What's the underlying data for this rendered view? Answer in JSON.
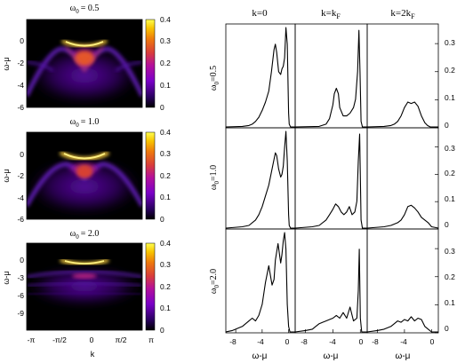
{
  "chart_data": [
    {
      "type": "heatmap",
      "title_prefix": "ω",
      "title_sub": "0",
      "title_value": "= 0.5",
      "ylabel": "ω-μ",
      "yticks": [
        0,
        -2,
        -4,
        -6
      ],
      "ylim": [
        -6,
        2
      ],
      "xlim": [
        -3.1416,
        3.1416
      ],
      "colorbar_ticks": [
        "0.4",
        "0.3",
        "0.2",
        "0.1",
        "0"
      ],
      "colorbar_range": [
        0,
        0.4
      ]
    },
    {
      "type": "heatmap",
      "title_prefix": "ω",
      "title_sub": "0",
      "title_value": "= 1.0",
      "ylabel": "ω-μ",
      "yticks": [
        0,
        -2,
        -4,
        -6
      ],
      "ylim": [
        -6,
        2
      ],
      "xlim": [
        -3.1416,
        3.1416
      ],
      "colorbar_ticks": [
        "0.4",
        "0.3",
        "0.2",
        "0.1",
        "0"
      ],
      "colorbar_range": [
        0,
        0.4
      ]
    },
    {
      "type": "heatmap",
      "title_prefix": "ω",
      "title_sub": "0",
      "title_value": "= 2.0",
      "ylabel": "ω-μ",
      "yticks": [
        0,
        -3,
        -6,
        -9
      ],
      "ylim": [
        -11,
        2
      ],
      "xlim": [
        -3.1416,
        3.1416
      ],
      "xticks": [
        "-π",
        "-π/2",
        "0",
        "π/2",
        "π"
      ],
      "xlabel": "k",
      "colorbar_ticks": [
        "0.4",
        "0.3",
        "0.2",
        "0.1",
        "0"
      ],
      "colorbar_range": [
        0,
        0.4
      ]
    },
    {
      "type": "line",
      "column_titles": [
        {
          "main": "k=0",
          "sub": ""
        },
        {
          "main": "k=k",
          "sub": "F"
        },
        {
          "main": "k=2k",
          "sub": "F"
        }
      ],
      "row_labels": [
        {
          "prefix": "ω",
          "sub": "0",
          "value": "=0.5"
        },
        {
          "prefix": "ω",
          "sub": "0",
          "value": "=1.0"
        },
        {
          "prefix": "ω",
          "sub": "0",
          "value": "=2.0"
        }
      ],
      "xticks": [
        "-8",
        "-4",
        "0"
      ],
      "xlabel": "ω-μ",
      "xlim": [
        -9.5,
        1
      ],
      "ylim": [
        0,
        0.37
      ],
      "yticks": [
        "0.3",
        "0.2",
        "0.1",
        "0"
      ],
      "series": [
        {
          "row": 0,
          "col": 0,
          "x": [
            -9.5,
            -7,
            -6,
            -5.5,
            -5,
            -4.5,
            -4,
            -3.5,
            -3,
            -2.6,
            -2.2,
            -2.0,
            -1.8,
            -1.5,
            -1.2,
            -1.0,
            -0.8,
            -0.6,
            -0.4,
            -0.2,
            0,
            0.1,
            0.3,
            1
          ],
          "y": [
            0,
            0.002,
            0.005,
            0.01,
            0.02,
            0.035,
            0.06,
            0.09,
            0.13,
            0.2,
            0.28,
            0.3,
            0.27,
            0.2,
            0.19,
            0.21,
            0.22,
            0.25,
            0.36,
            0.3,
            0.05,
            0.01,
            0,
            0
          ]
        },
        {
          "row": 0,
          "col": 1,
          "x": [
            -9.5,
            -6,
            -5,
            -4.5,
            -4,
            -3.8,
            -3.5,
            -3.2,
            -3,
            -2.5,
            -2,
            -1.5,
            -1.0,
            -0.7,
            -0.4,
            -0.2,
            -0.05,
            0.1,
            0.3,
            1
          ],
          "y": [
            0,
            0.002,
            0.01,
            0.03,
            0.08,
            0.12,
            0.14,
            0.12,
            0.07,
            0.04,
            0.04,
            0.05,
            0.07,
            0.1,
            0.2,
            0.35,
            0.2,
            0.02,
            0,
            0
          ]
        },
        {
          "row": 0,
          "col": 2,
          "x": [
            -9.5,
            -7,
            -6,
            -5.5,
            -5,
            -4.5,
            -4,
            -3.5,
            -3,
            -2.5,
            -2,
            -1.5,
            -1.0,
            -0.6,
            -0.2,
            1
          ],
          "y": [
            0,
            0.002,
            0.005,
            0.01,
            0.02,
            0.04,
            0.07,
            0.09,
            0.085,
            0.09,
            0.075,
            0.04,
            0.015,
            0.005,
            0,
            0
          ]
        },
        {
          "row": 1,
          "col": 0,
          "x": [
            -9.5,
            -7,
            -6,
            -5,
            -4.5,
            -4,
            -3.5,
            -3,
            -2.5,
            -2,
            -1.8,
            -1.5,
            -1.2,
            -1.0,
            -0.8,
            -0.6,
            -0.4,
            -0.2,
            0,
            0.1,
            0.3,
            1
          ],
          "y": [
            0,
            0.005,
            0.01,
            0.03,
            0.05,
            0.08,
            0.12,
            0.16,
            0.22,
            0.28,
            0.27,
            0.22,
            0.19,
            0.2,
            0.23,
            0.3,
            0.36,
            0.25,
            0.05,
            0.01,
            0,
            0
          ]
        },
        {
          "row": 1,
          "col": 1,
          "x": [
            -9.5,
            -7,
            -6,
            -5,
            -4.5,
            -4,
            -3.6,
            -3.2,
            -2.8,
            -2.4,
            -2,
            -1.6,
            -1.2,
            -0.8,
            -0.5,
            -0.3,
            -0.1,
            0.1,
            0.3,
            1
          ],
          "y": [
            0,
            0.005,
            0.01,
            0.03,
            0.05,
            0.07,
            0.09,
            0.08,
            0.06,
            0.05,
            0.06,
            0.08,
            0.05,
            0.06,
            0.1,
            0.25,
            0.35,
            0.03,
            0,
            0
          ]
        },
        {
          "row": 1,
          "col": 2,
          "x": [
            -9.5,
            -7,
            -6,
            -5,
            -4.5,
            -4,
            -3.5,
            -3,
            -2.5,
            -2,
            -1.5,
            -1.0,
            -0.5,
            0,
            1
          ],
          "y": [
            0,
            0.005,
            0.01,
            0.02,
            0.03,
            0.05,
            0.08,
            0.085,
            0.075,
            0.06,
            0.04,
            0.03,
            0.02,
            0.005,
            0
          ]
        },
        {
          "row": 2,
          "col": 0,
          "x": [
            -9.5,
            -8.5,
            -8,
            -7.5,
            -7,
            -6.5,
            -6,
            -5.5,
            -5,
            -4.5,
            -4,
            -3.5,
            -3.0,
            -2.5,
            -2.2,
            -2.0,
            -1.6,
            -1.2,
            -1.0,
            -0.8,
            -0.6,
            -0.4,
            -0.2,
            0,
            0.2,
            1
          ],
          "y": [
            0,
            0.005,
            0.01,
            0.015,
            0.02,
            0.03,
            0.04,
            0.05,
            0.04,
            0.06,
            0.1,
            0.18,
            0.24,
            0.17,
            0.19,
            0.26,
            0.32,
            0.25,
            0.28,
            0.33,
            0.36,
            0.3,
            0.1,
            0.02,
            0,
            0
          ]
        },
        {
          "row": 2,
          "col": 1,
          "x": [
            -9.5,
            -8,
            -7,
            -6.5,
            -6,
            -5.5,
            -5,
            -4.5,
            -4,
            -3.5,
            -3,
            -2.5,
            -2,
            -1.5,
            -1.0,
            -0.5,
            -0.3,
            -0.15,
            0,
            0.2,
            1
          ],
          "y": [
            0,
            0.005,
            0.01,
            0.02,
            0.03,
            0.035,
            0.04,
            0.045,
            0.05,
            0.06,
            0.05,
            0.07,
            0.05,
            0.09,
            0.04,
            0.05,
            0.15,
            0.3,
            0.05,
            0,
            0
          ]
        },
        {
          "row": 2,
          "col": 2,
          "x": [
            -9.5,
            -8,
            -7,
            -6,
            -5.5,
            -5,
            -4.5,
            -4,
            -3.5,
            -3,
            -2.5,
            -2,
            -1.5,
            -1.0,
            -0.5,
            0,
            1
          ],
          "y": [
            0,
            0.005,
            0.01,
            0.02,
            0.03,
            0.04,
            0.035,
            0.045,
            0.04,
            0.055,
            0.04,
            0.05,
            0.045,
            0.02,
            0.01,
            0,
            0
          ]
        }
      ]
    }
  ]
}
